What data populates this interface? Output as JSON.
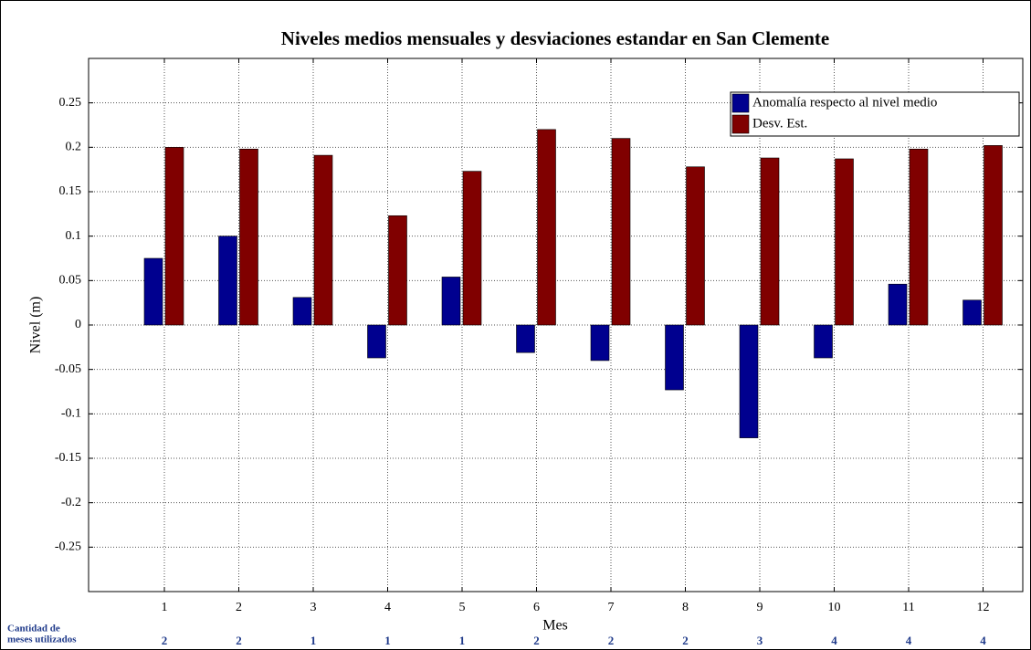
{
  "chart_data": {
    "type": "bar",
    "title": "Niveles medios mensuales y desviaciones estandar en San Clemente",
    "xlabel": "Mes",
    "ylabel": "Nivel (m)",
    "categories": [
      "1",
      "2",
      "3",
      "4",
      "5",
      "6",
      "7",
      "8",
      "9",
      "10",
      "11",
      "12"
    ],
    "series": [
      {
        "name": "Anomalía respecto al nivel medio",
        "color": "#00008f",
        "values": [
          0.075,
          0.1,
          0.031,
          -0.037,
          0.054,
          -0.031,
          -0.04,
          -0.073,
          -0.127,
          -0.037,
          0.046,
          0.028
        ]
      },
      {
        "name": "Desv. Est.",
        "color": "#800000",
        "values": [
          0.2,
          0.198,
          0.191,
          0.123,
          0.173,
          0.22,
          0.21,
          0.178,
          0.188,
          0.187,
          0.198,
          0.202
        ]
      }
    ],
    "ylim": [
      -0.3,
      0.3
    ],
    "yticks": [
      -0.25,
      -0.2,
      -0.15,
      -0.1,
      -0.05,
      0,
      0.05,
      0.1,
      0.15,
      0.2,
      0.25
    ],
    "grid": true,
    "legend": "northeast",
    "count_label": [
      "Cantidad de",
      "meses utilizados"
    ],
    "counts": [
      2,
      2,
      1,
      1,
      1,
      2,
      2,
      2,
      3,
      4,
      4,
      4
    ]
  }
}
